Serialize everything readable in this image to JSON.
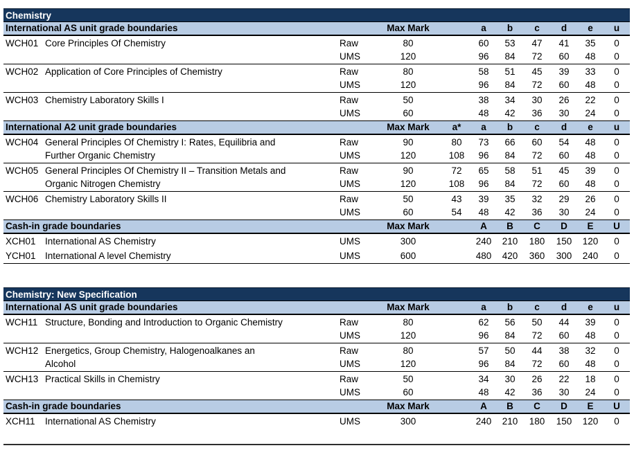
{
  "colors": {
    "table_title_bg": "#16365C",
    "table_title_text": "#FFFFFF",
    "section_header_bg": "#B8CCE4",
    "body_text": "#000000",
    "border": "#000000"
  },
  "tables": [
    {
      "title": "Chemistry",
      "sections": [
        {
          "label": "International AS unit grade boundaries",
          "max_mark_label": "Max Mark",
          "grades": [
            "",
            "a",
            "b",
            "c",
            "d",
            "e",
            "u"
          ],
          "rows": [
            {
              "code": "WCH01",
              "title_lines": [
                "Core Principles Of Chemistry"
              ],
              "lines": [
                {
                  "type": "Raw",
                  "max": "80",
                  "values": [
                    "",
                    "60",
                    "53",
                    "47",
                    "41",
                    "35",
                    "0"
                  ]
                },
                {
                  "type": "UMS",
                  "max": "120",
                  "values": [
                    "",
                    "96",
                    "84",
                    "72",
                    "60",
                    "48",
                    "0"
                  ]
                }
              ]
            },
            {
              "code": "WCH02",
              "title_lines": [
                "Application of Core Principles of Chemistry"
              ],
              "lines": [
                {
                  "type": "Raw",
                  "max": "80",
                  "values": [
                    "",
                    "58",
                    "51",
                    "45",
                    "39",
                    "33",
                    "0"
                  ]
                },
                {
                  "type": "UMS",
                  "max": "120",
                  "values": [
                    "",
                    "96",
                    "84",
                    "72",
                    "60",
                    "48",
                    "0"
                  ]
                }
              ]
            },
            {
              "code": "WCH03",
              "title_lines": [
                "Chemistry Laboratory Skills I"
              ],
              "lines": [
                {
                  "type": "Raw",
                  "max": "50",
                  "values": [
                    "",
                    "38",
                    "34",
                    "30",
                    "26",
                    "22",
                    "0"
                  ]
                },
                {
                  "type": "UMS",
                  "max": "60",
                  "values": [
                    "",
                    "48",
                    "42",
                    "36",
                    "30",
                    "24",
                    "0"
                  ]
                }
              ]
            }
          ]
        },
        {
          "label": "International A2 unit grade boundaries",
          "max_mark_label": "Max Mark",
          "grades": [
            "a*",
            "a",
            "b",
            "c",
            "d",
            "e",
            "u"
          ],
          "rows": [
            {
              "code": "WCH04",
              "title_lines": [
                "General Principles Of Chemistry I: Rates, Equilibria and",
                "Further Organic Chemistry"
              ],
              "lines": [
                {
                  "type": "Raw",
                  "max": "90",
                  "values": [
                    "80",
                    "73",
                    "66",
                    "60",
                    "54",
                    "48",
                    "0"
                  ]
                },
                {
                  "type": "UMS",
                  "max": "120",
                  "values": [
                    "108",
                    "96",
                    "84",
                    "72",
                    "60",
                    "48",
                    "0"
                  ]
                }
              ]
            },
            {
              "code": "WCH05",
              "title_lines": [
                "General Principles Of Chemistry II – Transition Metals and",
                "Organic Nitrogen Chemistry"
              ],
              "lines": [
                {
                  "type": "Raw",
                  "max": "90",
                  "values": [
                    "72",
                    "65",
                    "58",
                    "51",
                    "45",
                    "39",
                    "0"
                  ]
                },
                {
                  "type": "UMS",
                  "max": "120",
                  "values": [
                    "108",
                    "96",
                    "84",
                    "72",
                    "60",
                    "48",
                    "0"
                  ]
                }
              ]
            },
            {
              "code": "WCH06",
              "title_lines": [
                "Chemistry Laboratory Skills II"
              ],
              "lines": [
                {
                  "type": "Raw",
                  "max": "50",
                  "values": [
                    "43",
                    "39",
                    "35",
                    "32",
                    "29",
                    "26",
                    "0"
                  ]
                },
                {
                  "type": "UMS",
                  "max": "60",
                  "values": [
                    "54",
                    "48",
                    "42",
                    "36",
                    "30",
                    "24",
                    "0"
                  ]
                }
              ]
            }
          ]
        },
        {
          "label": "Cash-in grade boundaries",
          "max_mark_label": "Max Mark",
          "grades": [
            "",
            "A",
            "B",
            "C",
            "D",
            "E",
            "U"
          ],
          "rows": [
            {
              "code": "XCH01",
              "title_lines": [
                "International AS Chemistry"
              ],
              "lines": [
                {
                  "type": "UMS",
                  "max": "300",
                  "values": [
                    "",
                    "240",
                    "210",
                    "180",
                    "150",
                    "120",
                    "0"
                  ]
                }
              ]
            },
            {
              "code": "YCH01",
              "title_lines": [
                "International A level Chemistry"
              ],
              "lines": [
                {
                  "type": "UMS",
                  "max": "600",
                  "values": [
                    "",
                    "480",
                    "420",
                    "360",
                    "300",
                    "240",
                    "0"
                  ]
                }
              ]
            }
          ]
        }
      ]
    },
    {
      "title": "Chemistry: New Specification",
      "sections": [
        {
          "label": "International AS unit grade boundaries",
          "max_mark_label": "Max Mark",
          "grades": [
            "",
            "a",
            "b",
            "c",
            "d",
            "e",
            "u"
          ],
          "rows": [
            {
              "code": "WCH11",
              "title_lines": [
                "Structure, Bonding and Introduction to Organic Chemistry"
              ],
              "lines": [
                {
                  "type": "Raw",
                  "max": "80",
                  "values": [
                    "",
                    "62",
                    "56",
                    "50",
                    "44",
                    "39",
                    "0"
                  ]
                },
                {
                  "type": "UMS",
                  "max": "120",
                  "values": [
                    "",
                    "96",
                    "84",
                    "72",
                    "60",
                    "48",
                    "0"
                  ]
                }
              ]
            },
            {
              "code": "WCH12",
              "title_lines": [
                "Energetics, Group Chemistry, Halogenoalkanes an",
                "Alcohol"
              ],
              "lines": [
                {
                  "type": "Raw",
                  "max": "80",
                  "values": [
                    "",
                    "57",
                    "50",
                    "44",
                    "38",
                    "32",
                    "0"
                  ]
                },
                {
                  "type": "UMS",
                  "max": "120",
                  "values": [
                    "",
                    "96",
                    "84",
                    "72",
                    "60",
                    "48",
                    "0"
                  ]
                }
              ]
            },
            {
              "code": "WCH13",
              "title_lines": [
                "Practical Skills in Chemistry"
              ],
              "lines": [
                {
                  "type": "Raw",
                  "max": "50",
                  "values": [
                    "",
                    "34",
                    "30",
                    "26",
                    "22",
                    "18",
                    "0"
                  ]
                },
                {
                  "type": "UMS",
                  "max": "60",
                  "values": [
                    "",
                    "48",
                    "42",
                    "36",
                    "30",
                    "24",
                    "0"
                  ]
                }
              ]
            }
          ]
        },
        {
          "label": "Cash-in grade boundaries",
          "max_mark_label": "Max Mark",
          "grades": [
            "",
            "A",
            "B",
            "C",
            "D",
            "E",
            "U"
          ],
          "rows": [
            {
              "code": "XCH11",
              "title_lines": [
                "International AS Chemistry"
              ],
              "lines": [
                {
                  "type": "UMS",
                  "max": "300",
                  "values": [
                    "",
                    "240",
                    "210",
                    "180",
                    "150",
                    "120",
                    "0"
                  ]
                }
              ]
            }
          ]
        }
      ]
    }
  ]
}
